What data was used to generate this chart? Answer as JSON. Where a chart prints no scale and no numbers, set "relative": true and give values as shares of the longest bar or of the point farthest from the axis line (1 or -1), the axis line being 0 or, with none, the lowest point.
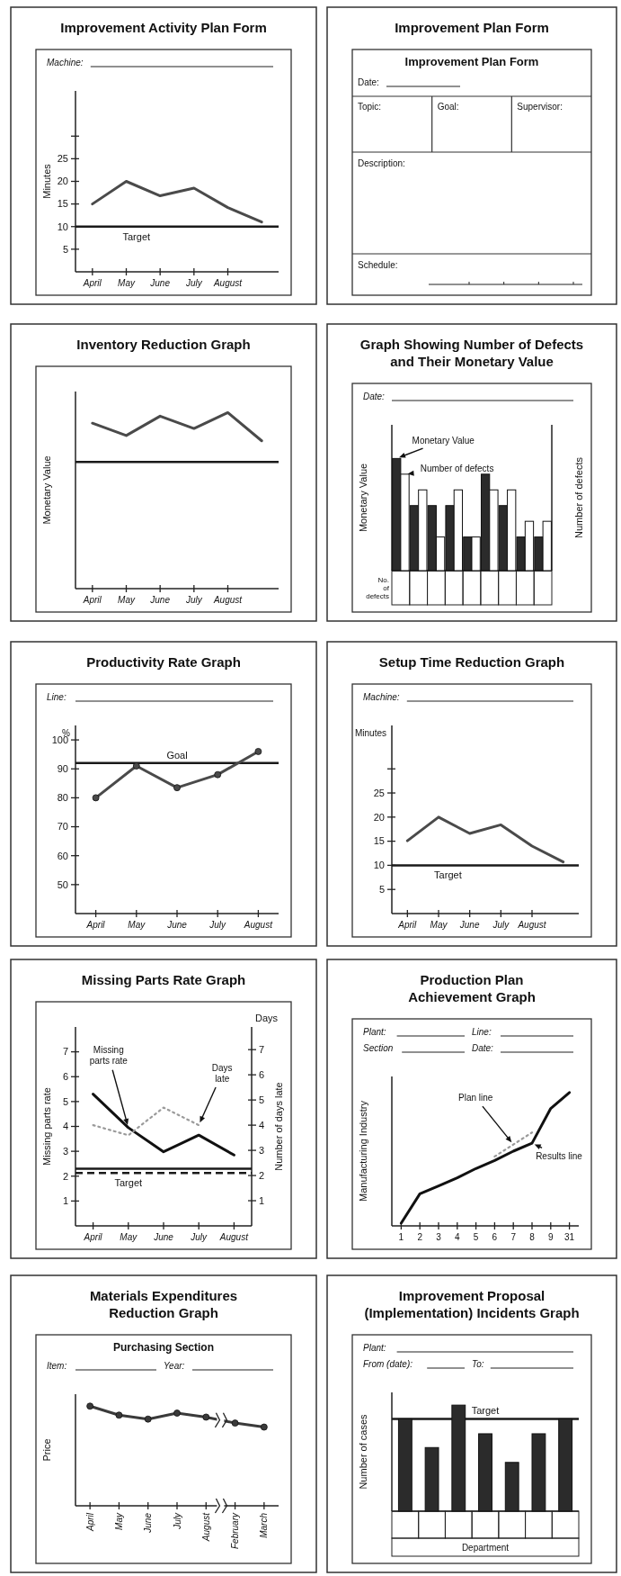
{
  "chart_data": [
    {
      "type": "line",
      "title": "Improvement Activity Plan Form",
      "categories": [
        "April",
        "May",
        "June",
        "July",
        "August",
        null
      ],
      "series": [
        {
          "color": "#4a4a4a",
          "values": [
            15,
            20,
            16.8,
            18.5,
            14.2,
            11
          ]
        }
      ],
      "ylim": [
        0,
        40
      ],
      "yticks": [
        5,
        10,
        15,
        20,
        25,
        {
          "value": 30,
          "label": null
        }
      ],
      "ylabel": "Minutes",
      "ref_lines": [
        {
          "axis": "y",
          "value": 10,
          "label": "Target"
        }
      ],
      "annotations": [
        "Machine:"
      ]
    },
    {
      "type": "other",
      "title": "Improvement Plan Form",
      "annotations": [
        "Improvement Plan Form",
        "Date:",
        "Topic:",
        "Goal:",
        "Supervisor:",
        "Description:",
        "Schedule:"
      ]
    },
    {
      "type": "line",
      "title": "Inventory Reduction Graph",
      "relative": true,
      "categories": [
        "April",
        "May",
        "June",
        "July",
        "August",
        null
      ],
      "series": [
        {
          "color": "#4a4a4a",
          "values": [
            0.94,
            0.87,
            0.98,
            0.91,
            1,
            0.84
          ]
        }
      ],
      "ylabel": "Monetary Value",
      "ref_lines": [
        {
          "axis": "y",
          "value": 0.72
        }
      ]
    },
    {
      "type": "bar",
      "title": "Graph Showing Number of Defects and Their Monetary Value",
      "relative": true,
      "categories": [
        null,
        null,
        null,
        null,
        null,
        null,
        null,
        null,
        null
      ],
      "series": [
        {
          "name": "Monetary Value",
          "color": "#2b2b2b",
          "values": [
            1,
            0.58,
            0.58,
            0.58,
            0.3,
            0.86,
            0.58,
            0.3,
            0.3
          ]
        },
        {
          "name": "Number of defects",
          "color": "#ffffff",
          "values": [
            0.86,
            0.72,
            0.3,
            0.72,
            0.3,
            0.72,
            0.72,
            0.44,
            0.44
          ]
        }
      ],
      "ylabel": "Monetary Value",
      "y2label": "Number of defects",
      "xlabel": "No. of defects",
      "annotations": [
        "Date:"
      ]
    },
    {
      "type": "line",
      "title": "Productivity Rate Graph",
      "categories": [
        "April",
        "May",
        "June",
        "July",
        "August"
      ],
      "series": [
        {
          "color": "#4a4a4a",
          "values": [
            80,
            91,
            83.5,
            88,
            96
          ]
        }
      ],
      "marker": "circle",
      "ylim": [
        40,
        105
      ],
      "yticks": [
        50,
        60,
        70,
        80,
        90,
        100
      ],
      "ylabel": "%",
      "ref_lines": [
        {
          "axis": "y",
          "value": 92,
          "label": "Goal"
        }
      ],
      "annotations": [
        "Line:"
      ]
    },
    {
      "type": "line",
      "title": "Setup Time Reduction Graph",
      "categories": [
        "April",
        "May",
        "June",
        "July",
        "August",
        null
      ],
      "series": [
        {
          "color": "#4a4a4a",
          "values": [
            15.1,
            20,
            16.6,
            18.4,
            14,
            10.7
          ]
        }
      ],
      "ylim": [
        0,
        39
      ],
      "yticks": [
        5,
        10,
        15,
        20,
        25,
        {
          "value": 30,
          "label": null
        }
      ],
      "ylabel": "Minutes",
      "ref_lines": [
        {
          "axis": "y",
          "value": 10,
          "label": "Target"
        }
      ],
      "annotations": [
        "Machine:"
      ]
    },
    {
      "type": "line",
      "title": "Missing Parts Rate Graph",
      "categories": [
        "April",
        "May",
        "June",
        "July",
        "August"
      ],
      "series": [
        {
          "name": "Missing parts rate",
          "color": "#111111",
          "values": [
            5.3,
            3.95,
            2.98,
            3.65,
            2.85
          ]
        },
        {
          "name": "Days late",
          "color": "#9a9a9a",
          "axis": "y2",
          "line_style": "dotted",
          "values": [
            4.0,
            3.6,
            4.7,
            4.0,
            null
          ]
        }
      ],
      "ylim": [
        0,
        8
      ],
      "yticks": [
        1,
        2,
        3,
        4,
        5,
        6,
        7
      ],
      "y2lim": [
        0,
        7.9
      ],
      "y2ticks": [
        1,
        2,
        3,
        4,
        5,
        6,
        7
      ],
      "ylabel": "Missing parts rate",
      "y2label": "Number of days late",
      "ref_lines": [
        {
          "axis": "y",
          "value": 2.3
        },
        {
          "axis": "y2",
          "value": 2.1,
          "label": "Target",
          "line_style": "dashed"
        }
      ],
      "annotations": [
        "Days"
      ]
    },
    {
      "type": "line",
      "title": "Production Plan Achievement Graph",
      "relative": true,
      "categories": [
        "1",
        "2",
        "3",
        "4",
        "5",
        "6",
        "7",
        "8",
        "9",
        "31"
      ],
      "series": [
        {
          "name": "Plan line",
          "color": "#9a9a9a",
          "line_style": "dotted",
          "values": [
            null,
            null,
            null,
            null,
            null,
            0.52,
            0.61,
            0.7,
            null,
            null
          ]
        },
        {
          "name": "Results line",
          "color": "#111111",
          "values": [
            0.02,
            0.24,
            0.3,
            0.36,
            0.43,
            0.49,
            0.56,
            0.62,
            0.88,
            1
          ]
        }
      ],
      "ylabel": "Manufacturing Industry",
      "annotations": [
        "Plant:",
        "Line:",
        "Section",
        "Date:"
      ]
    },
    {
      "type": "line",
      "title": "Materials Expenditures Reduction Graph",
      "subtitle": "Purchasing Section",
      "relative": true,
      "categories": [
        "April",
        "May",
        "June",
        "July",
        "August",
        "February",
        "March"
      ],
      "marker": "circle",
      "series": [
        {
          "color": "#3a3a3a",
          "values": [
            1,
            0.91,
            0.87,
            0.93,
            0.89,
            0.83,
            0.79
          ]
        }
      ],
      "ylabel": "Price",
      "annotations": [
        "Item:",
        "Year:"
      ]
    },
    {
      "type": "bar",
      "title": "Improvement Proposal (Implementation) Incidents Graph",
      "relative": true,
      "categories": [
        null,
        null,
        null,
        null,
        null,
        null,
        null
      ],
      "series": [
        {
          "color": "#2b2b2b",
          "values": [
            0.87,
            0.6,
            1,
            0.73,
            0.46,
            0.73,
            0.87
          ]
        }
      ],
      "ylabel": "Number of cases",
      "xlabel": "Department",
      "ref_lines": [
        {
          "axis": "y",
          "value": 0.87,
          "label": "Target"
        }
      ],
      "annotations": [
        "Plant:",
        "From (date):",
        "To:"
      ]
    }
  ]
}
